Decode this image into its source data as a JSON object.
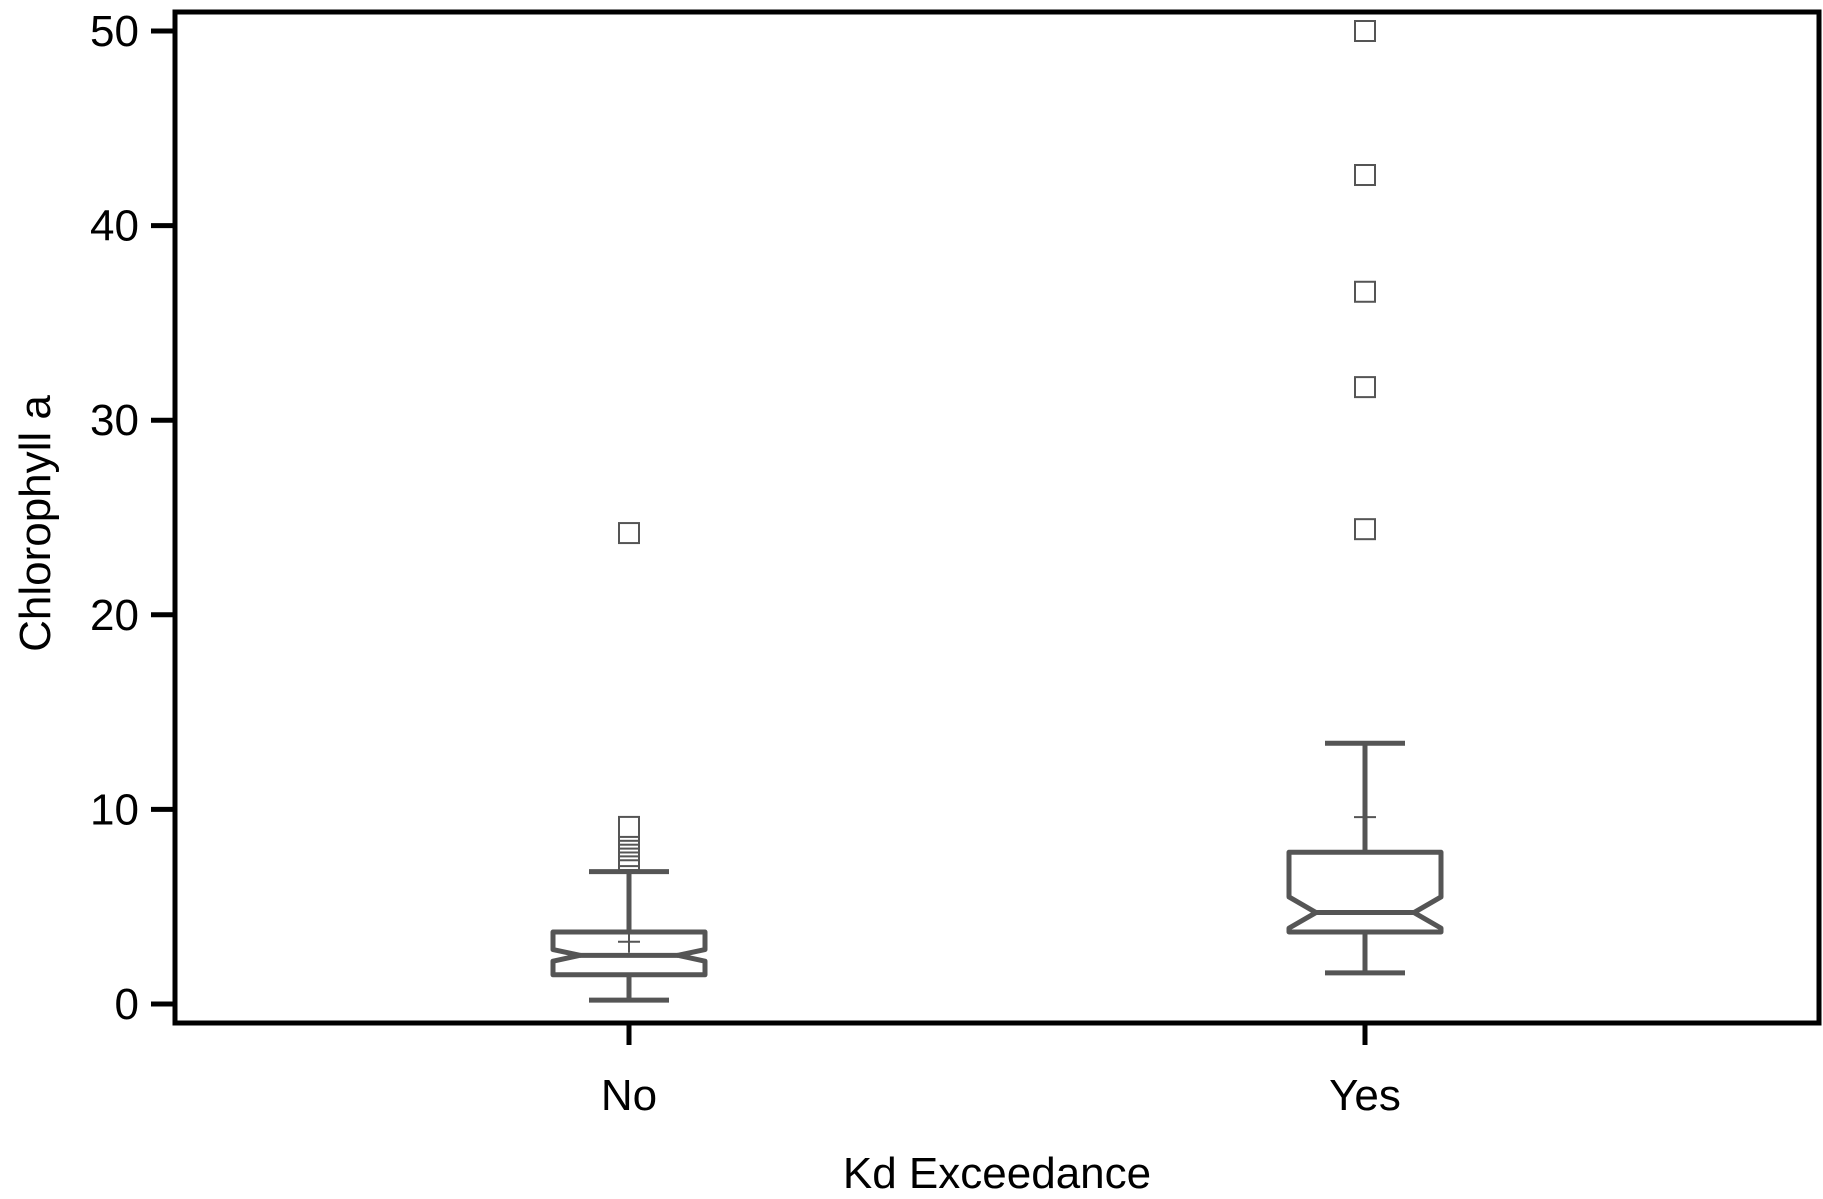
{
  "chart_data": {
    "type": "box",
    "xlabel": "Kd Exceedance",
    "ylabel": "Chlorophyll a",
    "ylim": [
      -1,
      51
    ],
    "yticks": [
      0,
      10,
      20,
      30,
      40,
      50
    ],
    "categories": [
      "No",
      "Yes"
    ],
    "boxes": [
      {
        "category": "No",
        "whisker_low": 0.2,
        "q1": 1.5,
        "median": 2.5,
        "q3": 3.7,
        "whisker_high": 6.8,
        "notch_low": 2.2,
        "notch_high": 2.8,
        "mean": 3.2,
        "outliers": [
          7.4,
          7.6,
          7.9,
          8.1,
          8.3,
          8.5,
          8.7,
          8.9,
          9.1,
          24.2
        ]
      },
      {
        "category": "Yes",
        "whisker_low": 1.6,
        "q1": 3.7,
        "median": 4.7,
        "q3": 7.8,
        "whisker_high": 13.4,
        "notch_low": 3.9,
        "notch_high": 5.5,
        "mean": 9.6,
        "outliers": [
          24.4,
          31.7,
          36.6,
          42.6,
          50.0
        ]
      }
    ],
    "colors": {
      "box": "#555555",
      "axis": "#000000",
      "outlier": "#555555"
    },
    "grid": false,
    "legend": "none"
  }
}
